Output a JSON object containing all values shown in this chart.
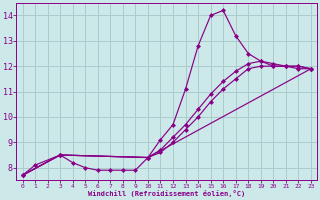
{
  "xlabel": "Windchill (Refroidissement éolien,°C)",
  "background_color": "#cce8e8",
  "grid_color": "#aacccc",
  "line_color": "#880088",
  "xlim": [
    -0.5,
    23.5
  ],
  "ylim": [
    7.5,
    14.5
  ],
  "xticks": [
    0,
    1,
    2,
    3,
    4,
    5,
    6,
    7,
    8,
    9,
    10,
    11,
    12,
    13,
    14,
    15,
    16,
    17,
    18,
    19,
    20,
    21,
    22,
    23
  ],
  "yticks": [
    8,
    9,
    10,
    11,
    12,
    13,
    14
  ],
  "series": [
    {
      "x": [
        0,
        1,
        3,
        4,
        5,
        6,
        7,
        8,
        9,
        10,
        11,
        12,
        13,
        14,
        15,
        16,
        17,
        18,
        19,
        20,
        21,
        22,
        23
      ],
      "y": [
        7.7,
        8.1,
        8.5,
        8.2,
        8.0,
        7.9,
        7.9,
        7.9,
        7.9,
        8.4,
        9.1,
        9.7,
        11.1,
        12.8,
        14.0,
        14.2,
        13.2,
        12.5,
        12.2,
        12.0,
        12.0,
        12.0,
        11.9
      ]
    },
    {
      "x": [
        0,
        3,
        10,
        11,
        12,
        13,
        14,
        15,
        16,
        17,
        18,
        19,
        20,
        21,
        22,
        23
      ],
      "y": [
        7.7,
        8.5,
        8.4,
        8.7,
        9.2,
        9.7,
        10.3,
        10.9,
        11.4,
        11.8,
        12.1,
        12.2,
        12.1,
        12.0,
        12.0,
        11.9
      ]
    },
    {
      "x": [
        0,
        3,
        10,
        11,
        12,
        13,
        14,
        15,
        16,
        17,
        18,
        19,
        20,
        21,
        22,
        23
      ],
      "y": [
        7.7,
        8.5,
        8.4,
        8.6,
        9.0,
        9.5,
        10.0,
        10.6,
        11.1,
        11.5,
        11.9,
        12.0,
        12.0,
        12.0,
        11.9,
        11.9
      ]
    },
    {
      "x": [
        0,
        3,
        10,
        23
      ],
      "y": [
        7.7,
        8.5,
        8.4,
        11.9
      ]
    }
  ]
}
